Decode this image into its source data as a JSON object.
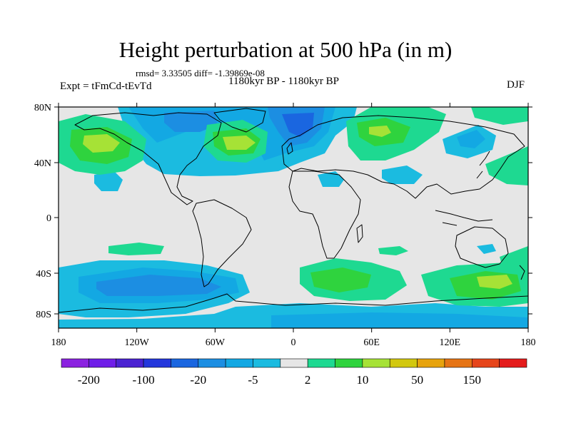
{
  "title": "Height perturbation at 500 hPa (in m)",
  "stats": "rmsd= 3.33505  diff= -1.39869e-08",
  "subtitle": "1180kyr BP - 1180kyr BP",
  "left_label": "Expt = tFmCd-tEvTd",
  "right_label": "DJF",
  "lat_ticks": [
    "80N",
    "40N",
    "0",
    "40S",
    "80S"
  ],
  "lon_ticks": [
    "180",
    "120W",
    "60W",
    "0",
    "60E",
    "120E",
    "180"
  ],
  "colorbar": {
    "colors": [
      "#8b22e0",
      "#6f1ee8",
      "#4b23d2",
      "#2437dc",
      "#1a66e0",
      "#1c8ee2",
      "#13a8e3",
      "#1bbbe0",
      "#e6e6e6",
      "#1ed991",
      "#2fd33e",
      "#a6e236",
      "#d2c80f",
      "#e7a30d",
      "#e67415",
      "#e6451b",
      "#e41c1c"
    ],
    "labels": [
      "-200",
      "-100",
      "-20",
      "-5",
      "2",
      "10",
      "50",
      "150"
    ]
  },
  "legend_colors": {
    "ocean_background": "#e6e6e6",
    "weak_negative": "#1bbbe0",
    "moderate_negative": "#13a8e3",
    "strong_negative": "#1c8ee2",
    "very_strong_negative": "#1a66e0",
    "weak_positive": "#1ed991",
    "moderate_positive": "#2fd33e",
    "strong_positive": "#a6e236"
  }
}
